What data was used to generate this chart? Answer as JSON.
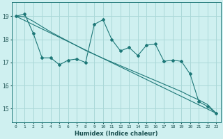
{
  "xlabel": "Humidex (Indice chaleur)",
  "background_color": "#cff0f0",
  "grid_color": "#aad8d8",
  "line_color": "#1e7878",
  "x_ticks": [
    0,
    1,
    2,
    3,
    4,
    5,
    6,
    7,
    8,
    9,
    10,
    11,
    12,
    13,
    14,
    15,
    16,
    17,
    18,
    19,
    20,
    21,
    22,
    23
  ],
  "y_ticks": [
    15,
    16,
    17,
    18,
    19
  ],
  "ylim": [
    14.4,
    19.6
  ],
  "xlim": [
    -0.5,
    23.5
  ],
  "series1_x": [
    0,
    1,
    2,
    3,
    4,
    5,
    6,
    7,
    8,
    9,
    10,
    11,
    12,
    13,
    14,
    15,
    16,
    17,
    18,
    19,
    20,
    21,
    22,
    23
  ],
  "series1_y": [
    19.0,
    19.1,
    18.25,
    17.2,
    17.2,
    16.9,
    17.1,
    17.15,
    17.0,
    18.65,
    18.85,
    18.0,
    17.5,
    17.65,
    17.3,
    17.75,
    17.8,
    17.05,
    17.1,
    17.05,
    16.5,
    15.3,
    15.1,
    14.8
  ],
  "series2_x": [
    0,
    23
  ],
  "series2_y": [
    19.0,
    14.8
  ],
  "series3_x": [
    0,
    1,
    2,
    3,
    4,
    5,
    6,
    7,
    8,
    9,
    10,
    11,
    12,
    13,
    14,
    15,
    16,
    17,
    18,
    19,
    20,
    21,
    22,
    23
  ],
  "series3_y": [
    19.0,
    18.98,
    18.78,
    18.55,
    18.32,
    18.12,
    17.92,
    17.72,
    17.52,
    17.35,
    17.18,
    17.02,
    16.86,
    16.7,
    16.54,
    16.38,
    16.22,
    16.06,
    15.9,
    15.74,
    15.55,
    15.38,
    15.18,
    14.8
  ]
}
